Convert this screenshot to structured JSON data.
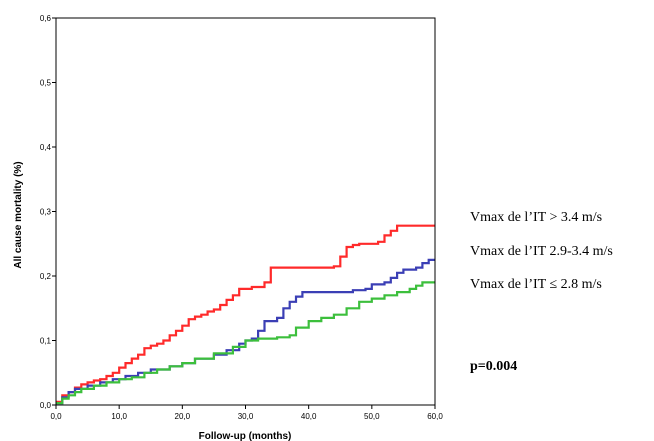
{
  "chart_data": {
    "type": "line",
    "title": "",
    "xlabel": "Follow-up (months)",
    "ylabel": "All cause mortality (%)",
    "xlim": [
      0,
      60
    ],
    "ylim": [
      0,
      0.6
    ],
    "x_ticks": [
      0,
      10,
      20,
      30,
      40,
      50,
      60
    ],
    "x_tick_labels": [
      "0,0",
      "10,0",
      "20,0",
      "30,0",
      "40,0",
      "50,0",
      "60,0"
    ],
    "y_ticks": [
      0,
      0.1,
      0.2,
      0.3,
      0.4,
      0.5,
      0.6
    ],
    "y_tick_labels": [
      "0,0",
      "0,1",
      "0,2",
      "0,3",
      "0,4",
      "0,5",
      "0,6"
    ],
    "grid": false,
    "legend_position": "right",
    "series": [
      {
        "name": "Vmax de l’IT > 3.4 m/s",
        "color": "#ff2a2a",
        "points": [
          [
            0,
            0.005
          ],
          [
            1,
            0.015
          ],
          [
            2,
            0.02
          ],
          [
            3,
            0.027
          ],
          [
            4,
            0.032
          ],
          [
            5,
            0.035
          ],
          [
            6,
            0.038
          ],
          [
            7,
            0.04
          ],
          [
            8,
            0.045
          ],
          [
            9,
            0.05
          ],
          [
            10,
            0.058
          ],
          [
            11,
            0.065
          ],
          [
            12,
            0.072
          ],
          [
            13,
            0.078
          ],
          [
            14,
            0.088
          ],
          [
            15,
            0.092
          ],
          [
            16,
            0.095
          ],
          [
            17,
            0.1
          ],
          [
            18,
            0.108
          ],
          [
            19,
            0.115
          ],
          [
            20,
            0.123
          ],
          [
            21,
            0.133
          ],
          [
            22,
            0.137
          ],
          [
            23,
            0.14
          ],
          [
            24,
            0.145
          ],
          [
            25,
            0.148
          ],
          [
            26,
            0.155
          ],
          [
            27,
            0.163
          ],
          [
            28,
            0.17
          ],
          [
            29,
            0.18
          ],
          [
            31,
            0.183
          ],
          [
            33,
            0.19
          ],
          [
            34,
            0.213
          ],
          [
            37,
            0.213
          ],
          [
            43,
            0.213
          ],
          [
            44,
            0.215
          ],
          [
            45,
            0.23
          ],
          [
            46,
            0.245
          ],
          [
            47,
            0.248
          ],
          [
            48,
            0.25
          ],
          [
            51,
            0.253
          ],
          [
            52,
            0.263
          ],
          [
            53,
            0.27
          ],
          [
            54,
            0.278
          ],
          [
            60,
            0.278
          ]
        ]
      },
      {
        "name": "Vmax de l’IT 2.9-3.4 m/s",
        "color": "#3b3fb5",
        "points": [
          [
            0,
            0.003
          ],
          [
            1,
            0.012
          ],
          [
            2,
            0.02
          ],
          [
            3,
            0.025
          ],
          [
            5,
            0.03
          ],
          [
            7,
            0.035
          ],
          [
            9,
            0.04
          ],
          [
            11,
            0.045
          ],
          [
            13,
            0.05
          ],
          [
            15,
            0.055
          ],
          [
            18,
            0.06
          ],
          [
            20,
            0.065
          ],
          [
            22,
            0.072
          ],
          [
            25,
            0.078
          ],
          [
            27,
            0.085
          ],
          [
            29,
            0.095
          ],
          [
            30,
            0.1
          ],
          [
            31,
            0.103
          ],
          [
            32,
            0.115
          ],
          [
            33,
            0.13
          ],
          [
            35,
            0.135
          ],
          [
            36,
            0.15
          ],
          [
            37,
            0.16
          ],
          [
            38,
            0.168
          ],
          [
            39,
            0.175
          ],
          [
            45,
            0.175
          ],
          [
            47,
            0.178
          ],
          [
            49,
            0.18
          ],
          [
            50,
            0.187
          ],
          [
            52,
            0.19
          ],
          [
            53,
            0.197
          ],
          [
            54,
            0.205
          ],
          [
            55,
            0.21
          ],
          [
            57,
            0.213
          ],
          [
            58,
            0.22
          ],
          [
            59,
            0.225
          ],
          [
            60,
            0.225
          ]
        ]
      },
      {
        "name": "Vmax de l’IT ≤ 2.8 m/s",
        "color": "#3cbf3c",
        "points": [
          [
            0,
            0.003
          ],
          [
            1,
            0.01
          ],
          [
            2,
            0.015
          ],
          [
            3,
            0.02
          ],
          [
            4,
            0.025
          ],
          [
            6,
            0.03
          ],
          [
            8,
            0.035
          ],
          [
            10,
            0.04
          ],
          [
            12,
            0.043
          ],
          [
            14,
            0.05
          ],
          [
            16,
            0.055
          ],
          [
            18,
            0.06
          ],
          [
            20,
            0.065
          ],
          [
            22,
            0.072
          ],
          [
            25,
            0.08
          ],
          [
            28,
            0.09
          ],
          [
            30,
            0.1
          ],
          [
            32,
            0.103
          ],
          [
            35,
            0.105
          ],
          [
            37,
            0.108
          ],
          [
            38,
            0.12
          ],
          [
            40,
            0.13
          ],
          [
            42,
            0.135
          ],
          [
            44,
            0.14
          ],
          [
            46,
            0.15
          ],
          [
            48,
            0.16
          ],
          [
            50,
            0.165
          ],
          [
            52,
            0.17
          ],
          [
            54,
            0.175
          ],
          [
            56,
            0.18
          ],
          [
            57,
            0.185
          ],
          [
            58,
            0.19
          ],
          [
            60,
            0.19
          ]
        ]
      }
    ],
    "annotations": [
      "p=0.004"
    ]
  }
}
